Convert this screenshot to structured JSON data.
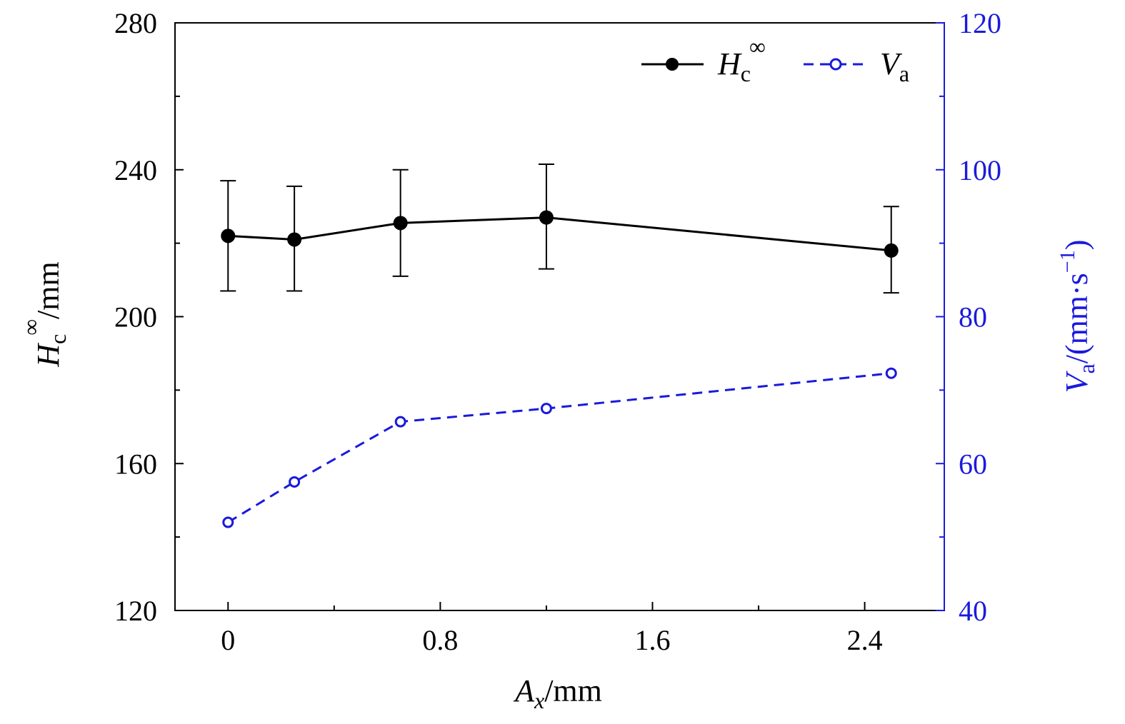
{
  "chart_data": {
    "type": "line",
    "x": [
      0,
      0.25,
      0.65,
      1.2,
      2.5
    ],
    "x_ticks": [
      0,
      0.8,
      1.6,
      2.4
    ],
    "x_tick_labels": [
      "0",
      "0.8",
      "1.6",
      "2.4"
    ],
    "xlim": [
      -0.2,
      2.7
    ],
    "xlabel": {
      "main": "A",
      "sub": "x",
      "unit": "/mm"
    },
    "y_left": {
      "label": {
        "main": "H",
        "sub": "c",
        "sup": "∞",
        "unit": "/mm"
      },
      "ylim": [
        120,
        280
      ],
      "ticks": [
        120,
        160,
        200,
        240,
        280
      ],
      "tick_labels": [
        "120",
        "160",
        "200",
        "240",
        "280"
      ],
      "minor_ticks": [
        140,
        180,
        220,
        260
      ]
    },
    "y_right": {
      "label": {
        "main": "V",
        "sub": "a",
        "unit": "/(mm·s",
        "unit_sup": "−1",
        "close": ")"
      },
      "ylim": [
        40,
        120
      ],
      "ticks": [
        40,
        60,
        80,
        100,
        120
      ],
      "tick_labels": [
        "40",
        "60",
        "80",
        "100",
        "120"
      ],
      "minor_ticks": [
        50,
        70,
        90,
        110
      ],
      "color": "#1a1adc"
    },
    "series": [
      {
        "name": "Hc∞",
        "axis": "left",
        "style": "solid",
        "marker": "filled-circle",
        "color": "#000000",
        "values": [
          222,
          221,
          225.5,
          227,
          218
        ],
        "err_low": [
          207,
          207,
          211,
          213,
          206.5
        ],
        "err_high": [
          237,
          235.5,
          240,
          241.5,
          230
        ]
      },
      {
        "name": "Va",
        "axis": "right",
        "style": "dashed",
        "marker": "open-circle",
        "color": "#1a1adc",
        "values": [
          52,
          57.5,
          65.7,
          67.5,
          72.3
        ]
      }
    ],
    "legend": {
      "position": "top-right",
      "entries": [
        {
          "main": "H",
          "sub": "c",
          "sup": "∞"
        },
        {
          "main": "V",
          "sub": "a"
        }
      ]
    }
  }
}
